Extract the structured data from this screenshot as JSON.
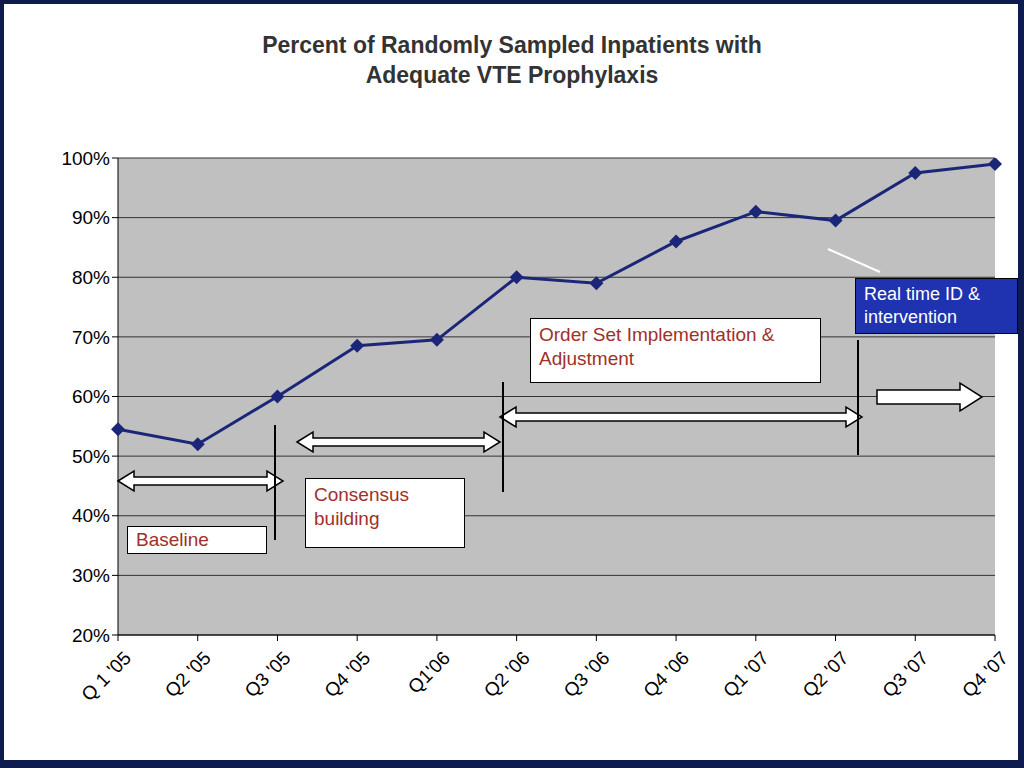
{
  "chart_data": {
    "type": "line",
    "title": "Percent of Randomly Sampled Inpatients with Adequate VTE Prophylaxis",
    "categories": [
      "Q 1 '05",
      "Q2 '05",
      "Q3 '05",
      "Q4 '05",
      "Q1'06",
      "Q2 '06",
      "Q3 '06",
      "Q4 '06",
      "Q1 '07",
      "Q2 '07",
      "Q3 '07",
      "Q4 '07"
    ],
    "values": [
      54.5,
      52,
      60,
      68.5,
      69.5,
      80,
      79,
      86,
      91,
      89.5,
      97.5,
      99
    ],
    "color": "#1c2678",
    "marker": "diamond",
    "ylim": [
      20,
      100
    ],
    "yticks": [
      {
        "value": 20,
        "label": "20%"
      },
      {
        "value": 30,
        "label": "30%"
      },
      {
        "value": 40,
        "label": "40%"
      },
      {
        "value": 50,
        "label": "50%"
      },
      {
        "value": 60,
        "label": "60%"
      },
      {
        "value": 70,
        "label": "70%"
      },
      {
        "value": 80,
        "label": "80%"
      },
      {
        "value": 90,
        "label": "90%"
      },
      {
        "value": 100,
        "label": "100%"
      }
    ],
    "grid": true,
    "annotations": [
      "Baseline",
      "Consensus building",
      "Order Set Implementation & Adjustment",
      "Real time ID & intervention"
    ]
  }
}
